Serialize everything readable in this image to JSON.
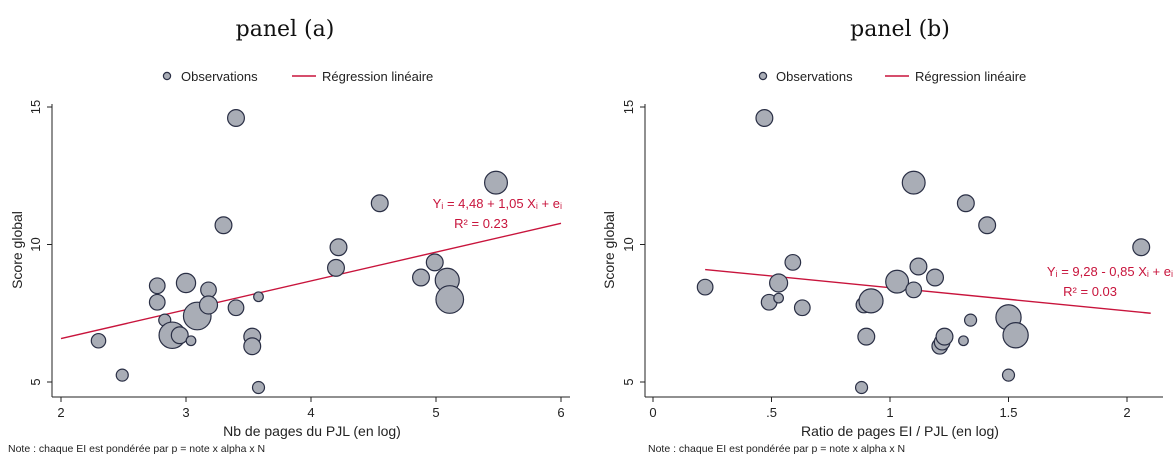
{
  "chart_data": [
    {
      "type": "scatter",
      "title": "panel (a)",
      "xlabel": "Nb de pages du PJL (en log)",
      "ylabel": "Score global",
      "xlim": [
        2,
        6
      ],
      "ylim": [
        4.5,
        15
      ],
      "xticks": [
        2,
        3,
        4,
        5,
        6
      ],
      "yticks": [
        5,
        10,
        15
      ],
      "legend_position": "top",
      "legend": {
        "points": "Observations",
        "line": "Régression linéaire"
      },
      "annotation": {
        "eq_main": "Yᵢ = 4,48 + 1,05 Xᵢ + eᵢ",
        "r2": "R² = 0.23"
      },
      "note": "Note : chaque EI est pondérée par p = note x alpha x N",
      "regression": {
        "x": [
          2,
          6
        ],
        "y": [
          6.58,
          10.77
        ]
      },
      "series": [
        {
          "name": "Observations",
          "points": [
            {
              "x": 2.3,
              "y": 6.5,
              "w": 1.2
            },
            {
              "x": 2.49,
              "y": 5.25,
              "w": 1.0
            },
            {
              "x": 2.77,
              "y": 8.5,
              "w": 1.3
            },
            {
              "x": 2.77,
              "y": 7.9,
              "w": 1.3
            },
            {
              "x": 2.83,
              "y": 7.25,
              "w": 1.0
            },
            {
              "x": 2.89,
              "y": 6.7,
              "w": 2.2
            },
            {
              "x": 2.95,
              "y": 6.7,
              "w": 1.4
            },
            {
              "x": 3.0,
              "y": 8.6,
              "w": 1.6
            },
            {
              "x": 3.04,
              "y": 6.5,
              "w": 0.8
            },
            {
              "x": 3.09,
              "y": 7.4,
              "w": 2.3
            },
            {
              "x": 3.18,
              "y": 8.35,
              "w": 1.3
            },
            {
              "x": 3.18,
              "y": 7.8,
              "w": 1.5
            },
            {
              "x": 3.3,
              "y": 10.7,
              "w": 1.4
            },
            {
              "x": 3.4,
              "y": 14.6,
              "w": 1.4
            },
            {
              "x": 3.4,
              "y": 7.7,
              "w": 1.3
            },
            {
              "x": 3.53,
              "y": 6.65,
              "w": 1.4
            },
            {
              "x": 3.53,
              "y": 6.3,
              "w": 1.4
            },
            {
              "x": 3.58,
              "y": 8.1,
              "w": 0.8
            },
            {
              "x": 3.58,
              "y": 4.8,
              "w": 1.0
            },
            {
              "x": 4.2,
              "y": 9.15,
              "w": 1.4
            },
            {
              "x": 4.22,
              "y": 9.9,
              "w": 1.4
            },
            {
              "x": 4.55,
              "y": 11.5,
              "w": 1.4
            },
            {
              "x": 4.88,
              "y": 8.8,
              "w": 1.4
            },
            {
              "x": 4.99,
              "y": 9.35,
              "w": 1.4
            },
            {
              "x": 5.09,
              "y": 8.7,
              "w": 2.0
            },
            {
              "x": 5.11,
              "y": 8.0,
              "w": 2.3
            },
            {
              "x": 5.48,
              "y": 12.25,
              "w": 1.9
            }
          ]
        }
      ]
    },
    {
      "type": "scatter",
      "title": "panel (b)",
      "xlabel": "Ratio de pages EI / PJL (en log)",
      "ylabel": "Score global",
      "xlim": [
        0,
        2.16
      ],
      "ylim": [
        4.5,
        15
      ],
      "xticks": [
        0,
        0.5,
        1,
        1.5,
        2
      ],
      "xticklabels": [
        "0",
        ".5",
        "1",
        "1.5",
        "2"
      ],
      "yticks": [
        5,
        10,
        15
      ],
      "legend_position": "top",
      "legend": {
        "points": "Observations",
        "line": "Régression linéaire"
      },
      "annotation": {
        "eq_main": "Yᵢ = 9,28 - 0,85 Xᵢ + eᵢ",
        "r2": "R² = 0.03"
      },
      "note": "Note : chaque EI est pondérée par p = note x alpha x N",
      "regression": {
        "x": [
          0.22,
          2.1
        ],
        "y": [
          9.09,
          7.5
        ]
      },
      "series": [
        {
          "name": "Observations",
          "points": [
            {
              "x": 0.22,
              "y": 8.45,
              "w": 1.3
            },
            {
              "x": 0.47,
              "y": 14.6,
              "w": 1.4
            },
            {
              "x": 0.49,
              "y": 7.9,
              "w": 1.3
            },
            {
              "x": 0.53,
              "y": 8.6,
              "w": 1.5
            },
            {
              "x": 0.53,
              "y": 8.05,
              "w": 0.8
            },
            {
              "x": 0.59,
              "y": 9.35,
              "w": 1.3
            },
            {
              "x": 0.63,
              "y": 7.7,
              "w": 1.3
            },
            {
              "x": 0.88,
              "y": 4.8,
              "w": 1.0
            },
            {
              "x": 0.89,
              "y": 7.8,
              "w": 1.3
            },
            {
              "x": 0.9,
              "y": 6.65,
              "w": 1.4
            },
            {
              "x": 0.92,
              "y": 7.95,
              "w": 2.0
            },
            {
              "x": 1.03,
              "y": 8.65,
              "w": 1.9
            },
            {
              "x": 1.1,
              "y": 12.25,
              "w": 1.9
            },
            {
              "x": 1.1,
              "y": 8.35,
              "w": 1.3
            },
            {
              "x": 1.12,
              "y": 9.2,
              "w": 1.4
            },
            {
              "x": 1.19,
              "y": 8.8,
              "w": 1.4
            },
            {
              "x": 1.21,
              "y": 6.3,
              "w": 1.3
            },
            {
              "x": 1.22,
              "y": 6.45,
              "w": 1.3
            },
            {
              "x": 1.23,
              "y": 6.65,
              "w": 1.4
            },
            {
              "x": 1.31,
              "y": 6.5,
              "w": 0.8
            },
            {
              "x": 1.32,
              "y": 11.5,
              "w": 1.4
            },
            {
              "x": 1.34,
              "y": 7.25,
              "w": 1.0
            },
            {
              "x": 1.41,
              "y": 10.7,
              "w": 1.4
            },
            {
              "x": 1.5,
              "y": 7.35,
              "w": 2.1
            },
            {
              "x": 1.5,
              "y": 5.25,
              "w": 1.0
            },
            {
              "x": 1.53,
              "y": 6.7,
              "w": 2.1
            },
            {
              "x": 2.06,
              "y": 9.9,
              "w": 1.4
            }
          ]
        }
      ]
    }
  ]
}
